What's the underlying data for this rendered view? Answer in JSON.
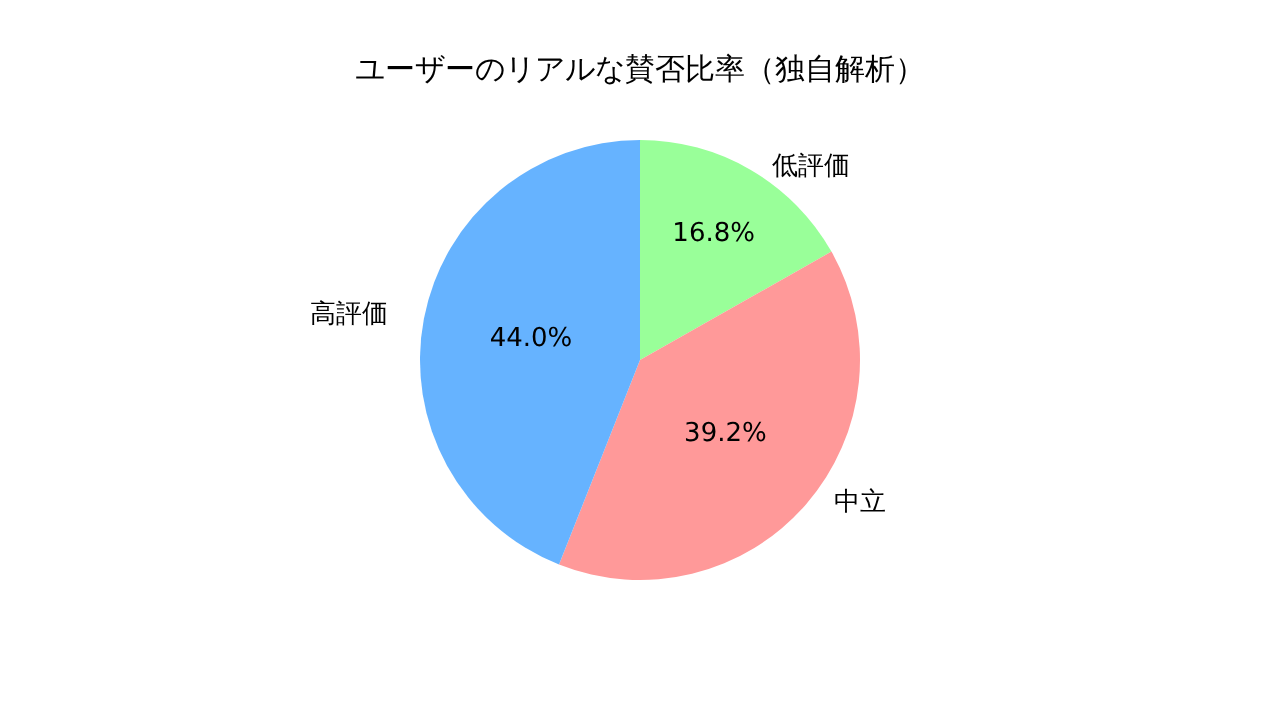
{
  "chart_data": {
    "type": "pie",
    "title": "ユーザーのリアルな賛否比率（独自解析）",
    "categories": [
      "低評価",
      "中立",
      "高評価"
    ],
    "values": [
      16.8,
      39.2,
      44.0
    ],
    "colors": [
      "#99ff99",
      "#ff9999",
      "#66b3ff"
    ],
    "value_labels": [
      "16.8%",
      "39.2%",
      "44.0%"
    ],
    "legend": false
  }
}
